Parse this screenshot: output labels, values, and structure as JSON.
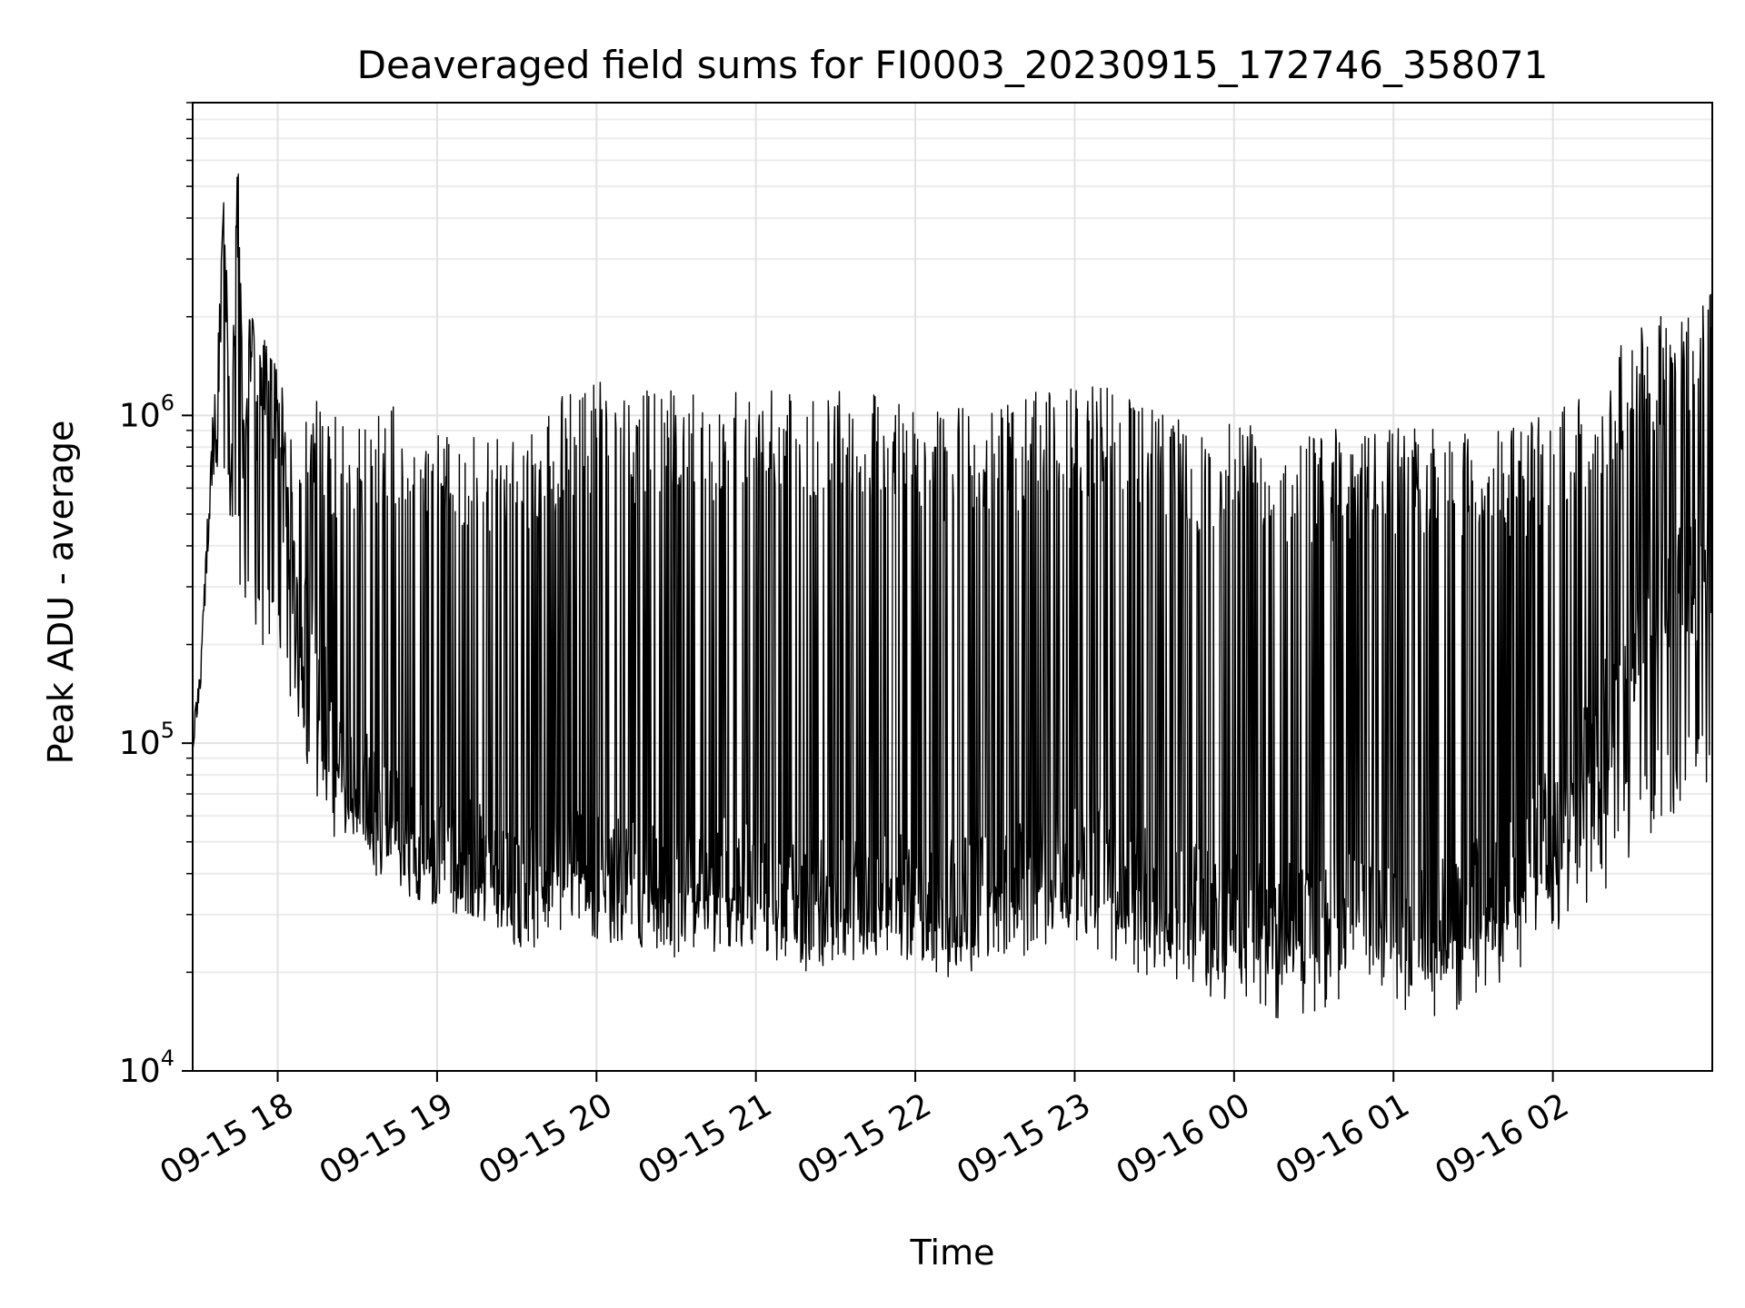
{
  "chart_data": {
    "type": "line",
    "title": "Deaveraged field sums for FI0003_20230915_172746_358071",
    "xlabel": "Time",
    "ylabel": "Peak ADU - average",
    "y_scale": "log",
    "ylim": [
      10000,
      9000000
    ],
    "xlim": [
      "2023-09-15 17:28",
      "2023-09-16 03:00"
    ],
    "grid": true,
    "legend": "none",
    "line_color": "#000000",
    "x_ticks": [
      {
        "value": "2023-09-15 18:00",
        "label": "09-15 18"
      },
      {
        "value": "2023-09-15 19:00",
        "label": "09-15 19"
      },
      {
        "value": "2023-09-15 20:00",
        "label": "09-15 20"
      },
      {
        "value": "2023-09-15 21:00",
        "label": "09-15 21"
      },
      {
        "value": "2023-09-15 22:00",
        "label": "09-15 22"
      },
      {
        "value": "2023-09-15 23:00",
        "label": "09-15 23"
      },
      {
        "value": "2023-09-16 00:00",
        "label": "09-16 00"
      },
      {
        "value": "2023-09-16 01:00",
        "label": "09-16 01"
      },
      {
        "value": "2023-09-16 02:00",
        "label": "09-16 02"
      }
    ],
    "y_ticks": [
      {
        "value": 10000,
        "base": "10",
        "exp": "4"
      },
      {
        "value": 100000,
        "base": "10",
        "exp": "5"
      },
      {
        "value": 1000000,
        "base": "10",
        "exp": "6"
      }
    ],
    "series": [
      {
        "x": [
          "2023-09-15 17:28",
          "2023-09-15 17:31",
          "2023-09-15 17:35",
          "2023-09-15 17:37",
          "2023-09-15 17:40",
          "2023-09-15 17:42",
          "2023-09-15 17:45",
          "2023-09-15 17:47",
          "2023-09-15 17:50",
          "2023-09-15 17:52",
          "2023-09-15 17:55",
          "2023-09-15 17:57",
          "2023-09-15 18:00",
          "2023-09-15 18:05",
          "2023-09-15 18:10",
          "2023-09-15 18:15",
          "2023-09-15 18:20",
          "2023-09-15 18:25",
          "2023-09-15 18:30",
          "2023-09-15 18:35",
          "2023-09-15 18:40",
          "2023-09-15 18:45",
          "2023-09-15 18:50",
          "2023-09-15 18:55",
          "2023-09-15 19:00",
          "2023-09-15 19:05",
          "2023-09-15 19:10",
          "2023-09-15 19:15",
          "2023-09-15 19:20",
          "2023-09-15 19:25",
          "2023-09-15 19:30",
          "2023-09-15 19:35",
          "2023-09-15 19:40",
          "2023-09-15 19:45",
          "2023-09-15 19:50",
          "2023-09-15 19:55",
          "2023-09-15 20:00",
          "2023-09-15 20:10",
          "2023-09-15 20:20",
          "2023-09-15 20:30",
          "2023-09-15 20:40",
          "2023-09-15 20:50",
          "2023-09-15 21:00",
          "2023-09-15 21:10",
          "2023-09-15 21:20",
          "2023-09-15 21:30",
          "2023-09-15 21:40",
          "2023-09-15 21:50",
          "2023-09-15 22:00",
          "2023-09-15 22:10",
          "2023-09-15 22:20",
          "2023-09-15 22:30",
          "2023-09-15 22:40",
          "2023-09-15 22:50",
          "2023-09-15 23:00",
          "2023-09-15 23:10",
          "2023-09-15 23:20",
          "2023-09-15 23:30",
          "2023-09-15 23:40",
          "2023-09-15 23:50",
          "2023-09-16 00:00",
          "2023-09-16 00:10",
          "2023-09-16 00:20",
          "2023-09-16 00:30",
          "2023-09-16 00:40",
          "2023-09-16 00:50",
          "2023-09-16 01:00",
          "2023-09-16 01:10",
          "2023-09-16 01:20",
          "2023-09-16 01:30",
          "2023-09-16 01:40",
          "2023-09-16 01:50",
          "2023-09-16 02:00",
          "2023-09-16 02:10",
          "2023-09-16 02:20",
          "2023-09-16 02:30",
          "2023-09-16 02:40",
          "2023-09-16 02:50",
          "2023-09-16 03:00"
        ],
        "y": [
          100000,
          160000,
          800000,
          1200000,
          5200000,
          700000,
          6300000,
          900000,
          2300000,
          1300000,
          1600000,
          1400000,
          900000,
          400000,
          250000,
          150000,
          110000,
          90000,
          75000,
          65000,
          60000,
          55000,
          50000,
          48000,
          47000,
          46000,
          44000,
          43000,
          42000,
          40000,
          38000,
          37000,
          39000,
          41000,
          43000,
          42000,
          40000,
          38000,
          37000,
          36000,
          37000,
          38000,
          36000,
          35000,
          34000,
          34000,
          35000,
          36000,
          33000,
          32000,
          34000,
          36000,
          38000,
          40000,
          42000,
          41000,
          38000,
          35000,
          33000,
          31000,
          30000,
          29000,
          28000,
          29000,
          30000,
          31000,
          30000,
          29000,
          30000,
          33000,
          38000,
          45000,
          55000,
          80000,
          120000,
          180000,
          250000,
          300000,
          350000
        ],
        "range_high": [
          110000,
          170000,
          900000,
          1300000,
          5200000,
          1000000,
          6300000,
          1100000,
          2300000,
          1400000,
          1700000,
          1500000,
          1400000,
          1300000,
          1200000,
          1100000,
          1050000,
          1000000,
          980000,
          1000000,
          1100000,
          1150000,
          1150000,
          1100000,
          1100000,
          1050000,
          1000000,
          980000,
          960000,
          940000,
          920000,
          900000,
          950000,
          1100000,
          1200000,
          1250000,
          1300000,
          1150000,
          1200000,
          1300000,
          1250000,
          1200000,
          1200000,
          1200000,
          1250000,
          1250000,
          1200000,
          1150000,
          1150000,
          1050000,
          1050000,
          1100000,
          1150000,
          1200000,
          1250000,
          1250000,
          1200000,
          1050000,
          1000000,
          950000,
          950000,
          920000,
          900000,
          900000,
          920000,
          950000,
          950000,
          920000,
          900000,
          880000,
          900000,
          950000,
          1050000,
          1200000,
          1500000,
          1800000,
          2000000,
          2200000,
          2400000
        ],
        "range_low": [
          95000,
          150000,
          600000,
          700000,
          600000,
          400000,
          300000,
          250000,
          220000,
          200000,
          190000,
          200000,
          180000,
          130000,
          90000,
          60000,
          50000,
          45000,
          42000,
          40000,
          38000,
          36000,
          34000,
          33000,
          32000,
          31000,
          29000,
          27000,
          26000,
          25000,
          24000,
          23000,
          24000,
          25000,
          27000,
          26000,
          25000,
          24000,
          23000,
          22000,
          22000,
          23000,
          22000,
          21000,
          20000,
          20000,
          21000,
          22000,
          20000,
          19000,
          20000,
          21000,
          22000,
          23000,
          23000,
          22000,
          20000,
          18000,
          17000,
          16000,
          15000,
          15000,
          14000,
          15000,
          16000,
          16000,
          15000,
          14000,
          15000,
          16000,
          18000,
          21000,
          25000,
          30000,
          36000,
          45000,
          55000,
          65000,
          70000
        ]
      }
    ]
  }
}
